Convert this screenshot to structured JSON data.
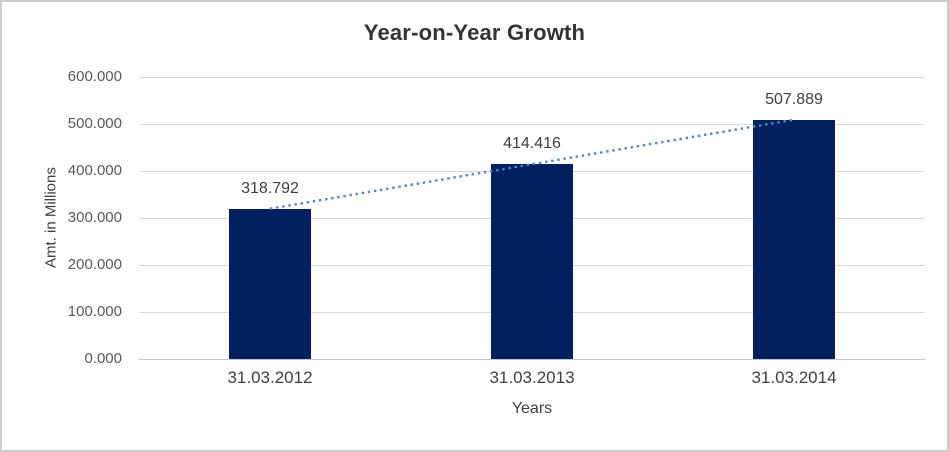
{
  "chart_data": {
    "type": "bar",
    "title": "Year-on-Year Growth",
    "xlabel": "Years",
    "ylabel": "Amt. in Millions",
    "categories": [
      "31.03.2012",
      "31.03.2013",
      "31.03.2014"
    ],
    "values": [
      318.792,
      414.416,
      507.889
    ],
    "data_labels": [
      "318.792",
      "414.416",
      "507.889"
    ],
    "y_ticks": [
      0,
      100,
      200,
      300,
      400,
      500,
      600
    ],
    "y_tick_labels": [
      "0.000",
      "100.000",
      "200.000",
      "300.000",
      "400.000",
      "500.000",
      "600.000"
    ],
    "ylim": [
      0,
      600
    ],
    "grid": true,
    "legend_position": "none",
    "bar_color": "#002060",
    "trendline": {
      "type": "linear",
      "style": "dotted",
      "color": "#4E87C8"
    },
    "gridline_color": "#d9d9d9",
    "axis_line_color": "#c6c6c6"
  }
}
